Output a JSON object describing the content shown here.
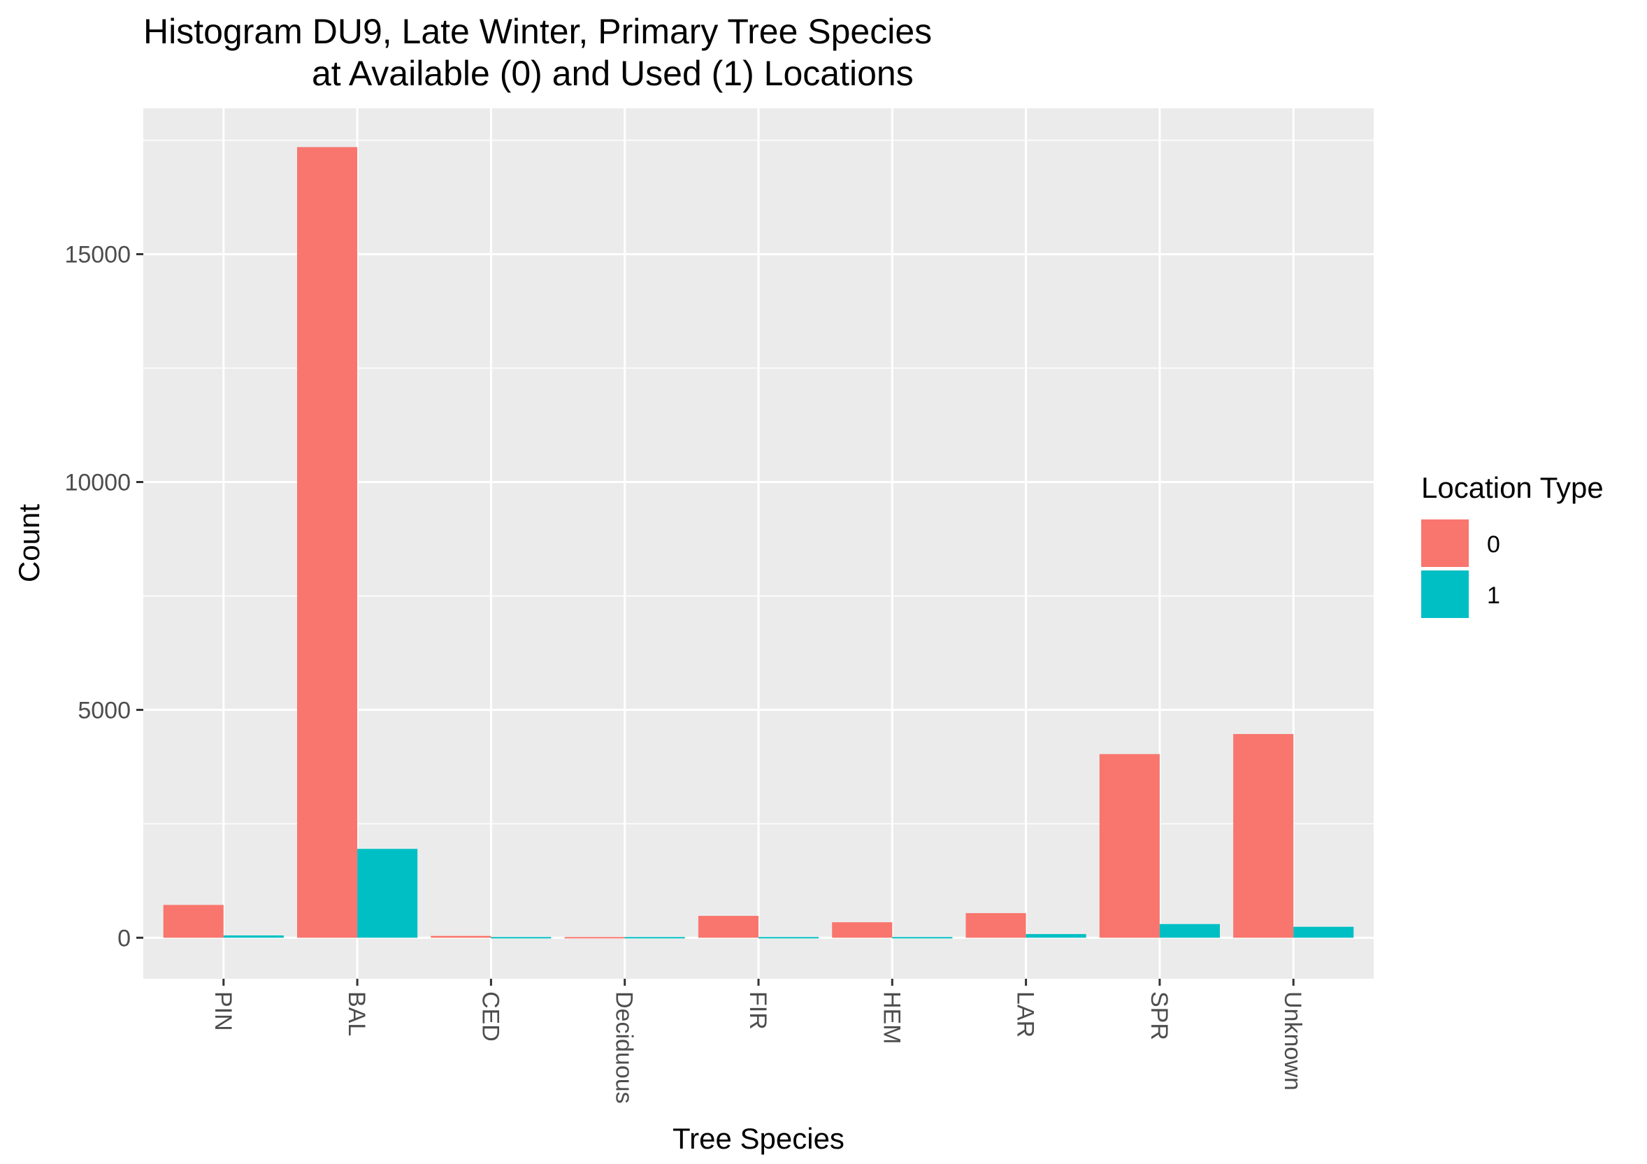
{
  "chart_data": {
    "type": "bar",
    "title_lines": [
      "Histogram DU9, Late Winter, Primary Tree Species",
      "at Available (0) and Used (1) Locations"
    ],
    "xlabel": "Tree Species",
    "ylabel": "Count",
    "categories": [
      "PIN",
      "BAL",
      "CED",
      "Deciduous",
      "FIR",
      "HEM",
      "LAR",
      "SPR",
      "Unknown"
    ],
    "series": [
      {
        "name": "0",
        "color": "#F8766D",
        "values": [
          720,
          17350,
          40,
          15,
          480,
          340,
          540,
          4030,
          4470
        ]
      },
      {
        "name": "1",
        "color": "#00BFC4",
        "values": [
          50,
          1950,
          8,
          5,
          30,
          15,
          80,
          300,
          240
        ]
      }
    ],
    "yticks": [
      0,
      5000,
      10000,
      15000
    ],
    "ylim": [
      -900,
      18200
    ],
    "legend": {
      "title": "Location Type",
      "position": "right"
    },
    "grid": true,
    "background": "#EBEBEB"
  }
}
